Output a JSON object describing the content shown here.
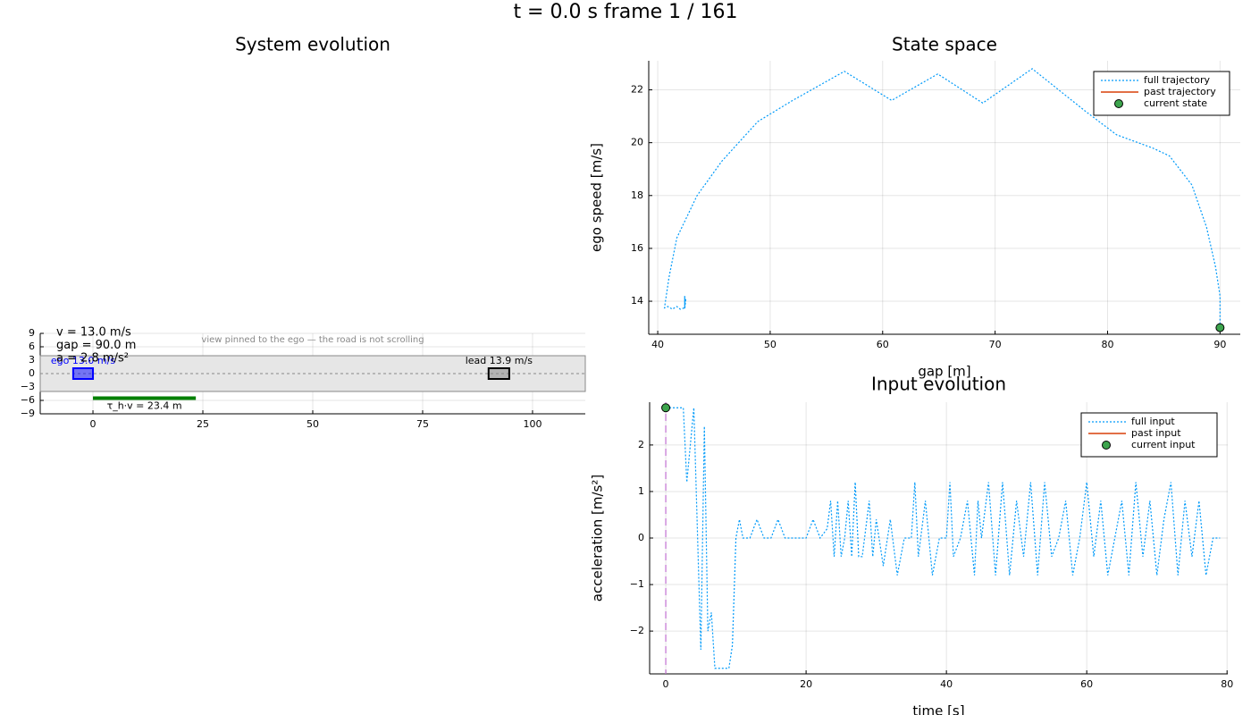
{
  "title": "t = 0.0 s   frame 1 / 161",
  "chart_data": [
    {
      "type": "scene",
      "title": "System evolution",
      "xlim": [
        -12,
        112
      ],
      "xticks": [
        0,
        25,
        50,
        75,
        100
      ],
      "ylim": [
        -9,
        9
      ],
      "yticks": [
        9,
        6,
        3,
        0,
        {
          "value": -3,
          "label": "−3"
        },
        {
          "value": -6,
          "label": "−6"
        },
        {
          "value": -9,
          "label": "−9"
        }
      ],
      "grid": true,
      "road": {
        "y": [
          -4,
          4
        ],
        "color": "#e6e6e6"
      },
      "ego": {
        "x": [
          -4.5,
          0
        ],
        "y": [
          -1.2,
          1.2
        ],
        "label": "ego 13.0 m/s",
        "color": "#0000ff"
      },
      "lead": {
        "x": [
          90,
          94.7
        ],
        "y": [
          -1.2,
          1.2
        ],
        "label": "lead 13.9 m/s",
        "color": "#808080"
      },
      "headway": {
        "x": [
          0,
          23.4
        ],
        "y": -5.5,
        "label": "τ_h·v = 23.4 m",
        "color": "#008000"
      },
      "info": [
        "v = 13.0 m/s",
        "gap = 90.0 m",
        "a = 2.8 m/s²"
      ],
      "note": "view pinned to the ego — the road is not scrolling"
    },
    {
      "type": "line",
      "title": "State space",
      "xlabel": "gap [m]",
      "ylabel": "ego speed [m/s]",
      "xlim": [
        39.2,
        91.8
      ],
      "xticks": [
        40,
        50,
        60,
        70,
        80,
        90
      ],
      "ylim": [
        12.75,
        23.1
      ],
      "yticks": [
        14,
        16,
        18,
        20,
        22
      ],
      "grid": true,
      "legend": "top-right",
      "series": [
        {
          "name": "full trajectory",
          "color": "#009af9",
          "style": "dotted",
          "x": [
            90,
            90,
            89.6,
            88.8,
            87.5,
            85.5,
            84,
            80.8,
            78,
            73.3,
            68.9,
            64.9,
            60.8,
            56.6,
            52,
            48.9,
            45.7,
            43.5,
            41.7,
            41,
            40.6,
            40.9,
            41.3,
            41.7,
            42,
            42.4,
            42.4,
            42.4,
            42.5,
            42.4
          ],
          "y": [
            13,
            14.2,
            15.3,
            16.8,
            18.4,
            19.5,
            19.8,
            20.3,
            21.2,
            22.8,
            21.5,
            22.6,
            21.6,
            22.7,
            21.6,
            20.8,
            19.3,
            18,
            16.4,
            14.9,
            13.75,
            13.8,
            13.7,
            13.8,
            13.7,
            13.75,
            14.2,
            13.7,
            14.1,
            13.8
          ]
        },
        {
          "name": "past trajectory",
          "color": "#e26f46",
          "style": "solid",
          "x": [
            90
          ],
          "y": [
            13
          ]
        },
        {
          "name": "current state",
          "color": "#3da44d",
          "style": "marker",
          "x": [
            90
          ],
          "y": [
            13
          ]
        }
      ]
    },
    {
      "type": "line",
      "title": "Input evolution",
      "xlabel": "time [s]",
      "ylabel": "acceleration [m/s²]",
      "xlim": [
        -2.3,
        80.1
      ],
      "xticks": [
        0,
        20,
        40,
        60,
        80
      ],
      "ylim": [
        -2.92,
        2.92
      ],
      "yticks": [
        {
          "value": -2,
          "label": "−2"
        },
        {
          "value": -1,
          "label": "−1"
        },
        0,
        1,
        2
      ],
      "grid": true,
      "legend": "top-right",
      "marker_line": {
        "x": 0,
        "color": "#c271d2"
      },
      "series": [
        {
          "name": "full input",
          "color": "#009af9",
          "style": "dotted",
          "x": [
            0,
            1,
            2,
            2.5,
            3,
            4,
            5,
            5.5,
            6,
            6.5,
            7,
            8,
            9,
            9.5,
            10,
            10.5,
            11,
            12,
            13,
            14,
            15,
            16,
            17,
            18,
            19,
            20,
            21,
            22,
            23,
            23.5,
            24,
            24.5,
            25,
            25.5,
            26,
            26.5,
            27,
            27.5,
            28,
            29,
            29.5,
            30,
            31,
            32,
            33,
            34,
            35,
            35.5,
            36,
            37,
            38,
            39,
            40,
            40.5,
            41,
            42,
            43,
            44,
            44.5,
            45,
            46,
            47,
            48,
            49,
            50,
            51,
            52,
            53,
            54,
            55,
            56,
            57,
            58,
            59,
            60,
            61,
            62,
            63,
            64,
            65,
            66,
            67,
            68,
            69,
            70,
            71,
            72,
            73,
            74,
            75,
            76,
            77,
            78,
            79
          ],
          "y": [
            2.8,
            2.8,
            2.8,
            2.8,
            1.2,
            2.8,
            -2.4,
            2.4,
            -2,
            -1.6,
            -2.8,
            -2.8,
            -2.8,
            -2.3,
            0,
            0.4,
            0,
            0,
            0.4,
            0,
            0,
            0.4,
            0,
            0,
            0,
            0,
            0.4,
            0,
            0.2,
            0.8,
            -0.4,
            0.8,
            -0.4,
            0,
            0.8,
            -0.4,
            1.2,
            -0.4,
            -0.4,
            0.8,
            -0.4,
            0.4,
            -0.6,
            0.4,
            -0.8,
            0,
            0,
            1.2,
            -0.4,
            0.8,
            -0.8,
            0,
            0,
            1.2,
            -0.4,
            0,
            0.8,
            -0.8,
            0.8,
            0,
            1.2,
            -0.8,
            1.2,
            -0.8,
            0.8,
            -0.4,
            1.2,
            -0.8,
            1.2,
            -0.4,
            0,
            0.8,
            -0.8,
            0,
            1.2,
            -0.4,
            0.8,
            -0.8,
            0,
            0.8,
            -0.8,
            1.2,
            -0.4,
            0.8,
            -0.8,
            0.4,
            1.2,
            -0.8,
            0.8,
            -0.4,
            0.8,
            -0.8,
            0,
            0
          ]
        },
        {
          "name": "past input",
          "color": "#e26f46",
          "style": "solid",
          "x": [
            0
          ],
          "y": [
            2.8
          ]
        },
        {
          "name": "current input",
          "color": "#3da44d",
          "style": "marker",
          "x": [
            0
          ],
          "y": [
            2.8
          ]
        }
      ]
    }
  ]
}
